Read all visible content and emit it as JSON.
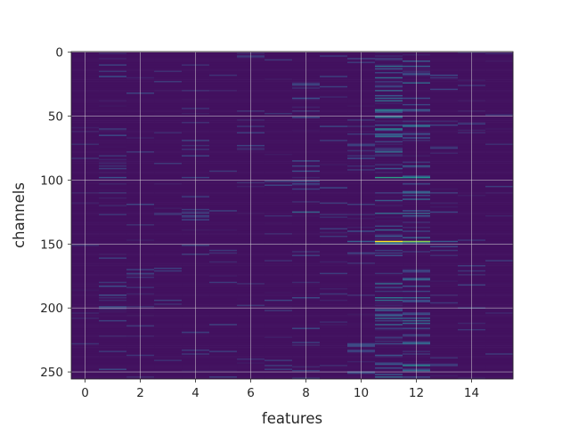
{
  "chart_data": {
    "type": "heatmap",
    "xlabel": "features",
    "ylabel": "channels",
    "xlim": [
      -0.5,
      15.5
    ],
    "ylim": [
      255.5,
      -0.5
    ],
    "n_cols": 16,
    "n_rows": 256,
    "x_ticks": [
      0,
      2,
      4,
      6,
      8,
      10,
      12,
      14
    ],
    "y_ticks": [
      0,
      50,
      100,
      150,
      200,
      250
    ],
    "colormap": "viridis",
    "grid": true,
    "base_value": 0.05,
    "column_activity": [
      0.06,
      0.12,
      0.07,
      0.06,
      0.08,
      0.06,
      0.05,
      0.08,
      0.12,
      0.1,
      0.12,
      0.32,
      0.28,
      0.1,
      0.06,
      0.05
    ],
    "highlights": [
      {
        "col": 11,
        "row": 148,
        "value": 1.0
      },
      {
        "col": 12,
        "row": 148,
        "value": 0.82
      },
      {
        "col": 11,
        "row": 98,
        "value": 0.55
      },
      {
        "col": 12,
        "row": 98,
        "value": 0.5
      },
      {
        "col": 11,
        "row": 60,
        "value": 0.45
      },
      {
        "col": 11,
        "row": 45,
        "value": 0.42
      },
      {
        "col": 12,
        "row": 245,
        "value": 0.45
      },
      {
        "col": 11,
        "row": 192,
        "value": 0.38
      },
      {
        "col": 8,
        "row": 125,
        "value": 0.32
      },
      {
        "col": 10,
        "row": 148,
        "value": 0.3
      },
      {
        "col": 13,
        "row": 148,
        "value": 0.28
      },
      {
        "col": 1,
        "row": 98,
        "value": 0.25
      }
    ],
    "colors": {
      "background": "#ffffff",
      "grid": "#d8d8d8",
      "text": "#262626"
    }
  }
}
